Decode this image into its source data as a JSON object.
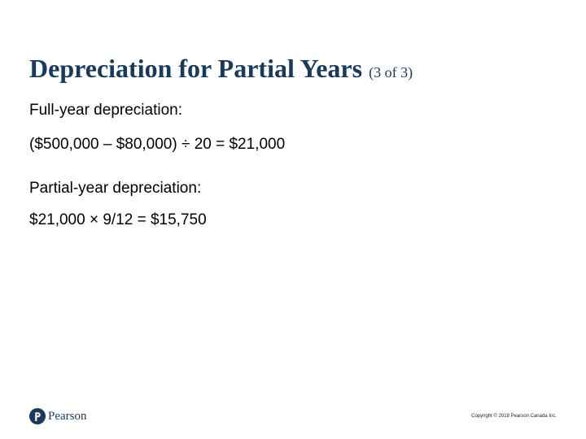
{
  "slide": {
    "title": "Depreciation for Partial Years",
    "title_suffix": "(3 of 3)",
    "lines": [
      "Full-year depreciation:",
      "($500,000 – $80,000) ÷ 20 = $21,000",
      "Partial-year depreciation:",
      "$21,000 × 9/12 = $15,750"
    ]
  },
  "footer": {
    "logo_text": "Pearson",
    "copyright": "Copyright © 2018 Pearson Canada Inc."
  },
  "colors": {
    "title": "#1a3a5c",
    "logo": "#1a3a5c"
  }
}
